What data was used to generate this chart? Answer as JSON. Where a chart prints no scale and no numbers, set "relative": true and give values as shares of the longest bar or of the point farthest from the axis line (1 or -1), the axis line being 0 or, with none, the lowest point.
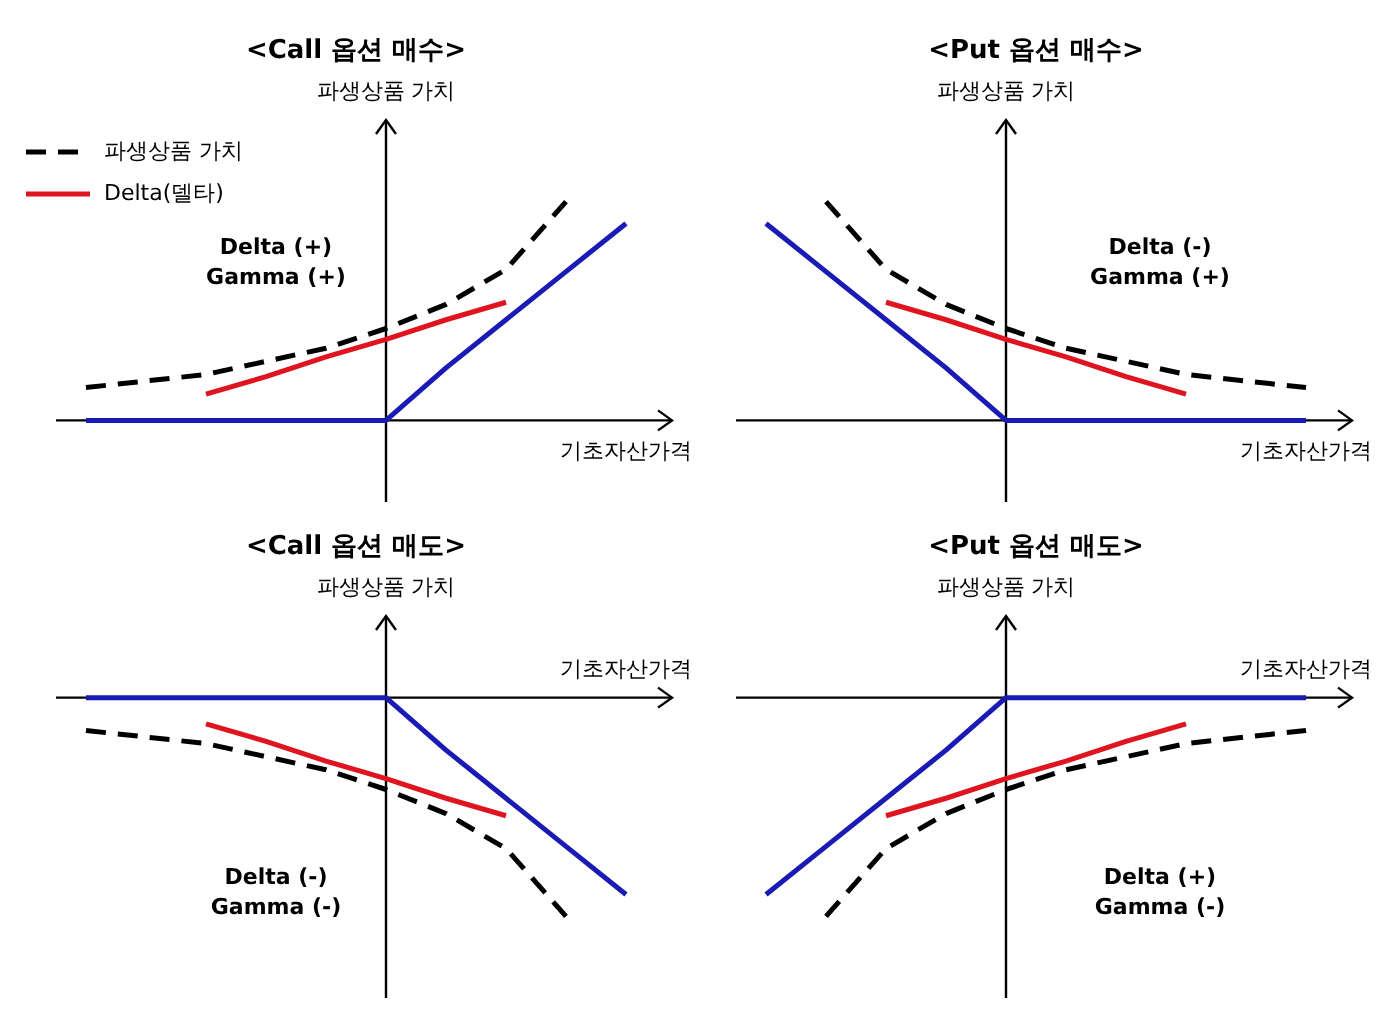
{
  "chart_data": [
    {
      "type": "line",
      "title": "<Call 옵션 매수>",
      "xlabel": "기초자산가격",
      "ylabel": "파생상품 가치",
      "relative": true,
      "marker": "none",
      "legend": "top left",
      "annotations": [
        "Delta (+)",
        "Gamma (+)"
      ],
      "categories": [
        null,
        null,
        null,
        null,
        null,
        null,
        null,
        null,
        null,
        null
      ],
      "series": [
        {
          "name": "파생상품 가치",
          "color": "#000000",
          "line_style": "dashed",
          "values": [
            0.15,
            0.18,
            0.21,
            0.27,
            0.33,
            0.42,
            0.53,
            0.69,
            1.0,
            null
          ]
        },
        {
          "name": "Delta(델타)",
          "color": "#e0141e",
          "line_style": "solid",
          "values": [
            null,
            null,
            0.12,
            0.2,
            0.29,
            0.37,
            0.46,
            0.54,
            null,
            null
          ]
        },
        {
          "color": "#1a1ab4",
          "line_style": "solid",
          "values": [
            0,
            0,
            0,
            0,
            0,
            0,
            0.24,
            0.46,
            0.68,
            0.9
          ]
        }
      ]
    },
    {
      "type": "line",
      "title": "<Put 옵션 매수>",
      "xlabel": "기초자산가격",
      "ylabel": "파생상품 가치",
      "relative": true,
      "marker": "none",
      "annotations": [
        "Delta (-)",
        "Gamma (+)"
      ],
      "categories": [
        null,
        null,
        null,
        null,
        null,
        null,
        null,
        null,
        null,
        null
      ],
      "series": [
        {
          "color": "#000000",
          "line_style": "dashed",
          "values": [
            null,
            1.0,
            0.69,
            0.53,
            0.42,
            0.33,
            0.27,
            0.21,
            0.18,
            0.15
          ]
        },
        {
          "color": "#e0141e",
          "line_style": "solid",
          "values": [
            null,
            null,
            0.54,
            0.46,
            0.37,
            0.29,
            0.2,
            0.12,
            null,
            null
          ]
        },
        {
          "color": "#1a1ab4",
          "line_style": "solid",
          "values": [
            0.9,
            0.68,
            0.46,
            0.24,
            0,
            0,
            0,
            0,
            0,
            0
          ]
        }
      ]
    },
    {
      "type": "line",
      "title": "<Call 옵션 매도>",
      "xlabel": "기초자산가격",
      "ylabel": "파생상품 가치",
      "relative": true,
      "marker": "none",
      "annotations": [
        "Delta (-)",
        "Gamma (-)"
      ],
      "categories": [
        null,
        null,
        null,
        null,
        null,
        null,
        null,
        null,
        null,
        null
      ],
      "series": [
        {
          "color": "#000000",
          "line_style": "dashed",
          "values": [
            -0.15,
            -0.18,
            -0.21,
            -0.27,
            -0.33,
            -0.42,
            -0.53,
            -0.69,
            -1.0,
            null
          ]
        },
        {
          "color": "#e0141e",
          "line_style": "solid",
          "values": [
            null,
            null,
            -0.12,
            -0.2,
            -0.29,
            -0.37,
            -0.46,
            -0.54,
            null,
            null
          ]
        },
        {
          "color": "#1a1ab4",
          "line_style": "solid",
          "values": [
            0,
            0,
            0,
            0,
            0,
            0,
            -0.24,
            -0.46,
            -0.68,
            -0.9
          ]
        }
      ]
    },
    {
      "type": "line",
      "title": "<Put 옵션 매도>",
      "xlabel": "기초자산가격",
      "ylabel": "파생상품 가치",
      "relative": true,
      "marker": "none",
      "annotations": [
        "Delta (+)",
        "Gamma (-)"
      ],
      "categories": [
        null,
        null,
        null,
        null,
        null,
        null,
        null,
        null,
        null,
        null
      ],
      "series": [
        {
          "color": "#000000",
          "line_style": "dashed",
          "values": [
            null,
            -1.0,
            -0.69,
            -0.53,
            -0.42,
            -0.33,
            -0.27,
            -0.21,
            -0.18,
            -0.15
          ]
        },
        {
          "color": "#e0141e",
          "line_style": "solid",
          "values": [
            null,
            null,
            -0.54,
            -0.46,
            -0.37,
            -0.29,
            -0.2,
            -0.12,
            null,
            null
          ]
        },
        {
          "color": "#1a1ab4",
          "line_style": "solid",
          "values": [
            -0.9,
            -0.68,
            -0.46,
            -0.24,
            0,
            0,
            0,
            0,
            0,
            0
          ]
        }
      ]
    }
  ]
}
